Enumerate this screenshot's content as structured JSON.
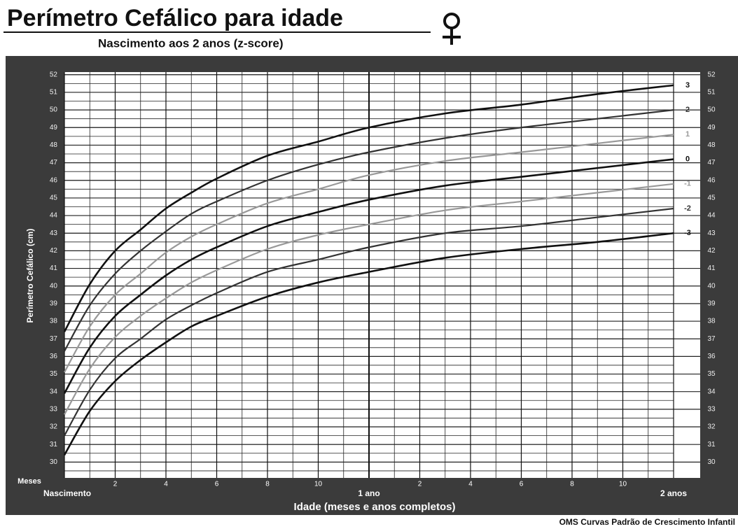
{
  "chart_data": {
    "type": "line",
    "title": "Perímetro Cefálico para idade",
    "subtitle": "Nascimento aos 2 anos (z-score)",
    "y_label": "Perímetro Cefálico (cm)",
    "x_label": "Idade (meses e anos completos)",
    "x_unit_label": "Meses",
    "footer": "OMS Curvas Padrão de Crescimento Infantil",
    "x": [
      0,
      1,
      2,
      3,
      4,
      5,
      6,
      8,
      10,
      12,
      15,
      18,
      21,
      24
    ],
    "series": [
      {
        "name": "3",
        "color": "#111111",
        "width": 2.6,
        "values": [
          37.4,
          40.1,
          42.0,
          43.2,
          44.4,
          45.3,
          46.1,
          47.4,
          48.2,
          49.0,
          49.8,
          50.3,
          50.9,
          51.4
        ]
      },
      {
        "name": "2",
        "color": "#333333",
        "width": 2.2,
        "values": [
          36.3,
          38.9,
          40.7,
          42.0,
          43.1,
          44.1,
          44.8,
          46.0,
          46.9,
          47.6,
          48.4,
          49.0,
          49.5,
          50.0
        ]
      },
      {
        "name": "1",
        "color": "#999999",
        "width": 2.2,
        "values": [
          35.1,
          37.7,
          39.5,
          40.7,
          41.9,
          42.8,
          43.5,
          44.7,
          45.5,
          46.3,
          47.1,
          47.6,
          48.1,
          48.6
        ]
      },
      {
        "name": "0",
        "color": "#111111",
        "width": 2.6,
        "values": [
          33.9,
          36.5,
          38.3,
          39.5,
          40.6,
          41.5,
          42.2,
          43.4,
          44.2,
          44.9,
          45.7,
          46.2,
          46.7,
          47.2
        ]
      },
      {
        "name": "-1",
        "color": "#999999",
        "width": 2.2,
        "values": [
          32.7,
          35.3,
          37.1,
          38.3,
          39.3,
          40.2,
          40.9,
          42.1,
          42.9,
          43.5,
          44.3,
          44.8,
          45.3,
          45.8
        ]
      },
      {
        "name": "-2",
        "color": "#333333",
        "width": 2.2,
        "values": [
          31.5,
          34.1,
          35.9,
          37.0,
          38.1,
          38.9,
          39.6,
          40.8,
          41.5,
          42.2,
          43.0,
          43.4,
          43.9,
          44.4
        ]
      },
      {
        "name": "-3",
        "color": "#111111",
        "width": 2.6,
        "values": [
          30.4,
          32.9,
          34.6,
          35.8,
          36.8,
          37.7,
          38.3,
          39.4,
          40.2,
          40.8,
          41.6,
          42.1,
          42.5,
          43.0
        ]
      }
    ],
    "xlim": [
      0,
      24
    ],
    "xticks": [
      {
        "value": 0,
        "label": "Nascimento"
      },
      2,
      4,
      6,
      8,
      10,
      {
        "value": 12,
        "label": "1 ano"
      },
      {
        "value": 14,
        "label": "2"
      },
      {
        "value": 16,
        "label": "4"
      },
      {
        "value": 18,
        "label": "6"
      },
      {
        "value": 20,
        "label": "8"
      },
      {
        "value": 22,
        "label": "10"
      },
      {
        "value": 24,
        "label": "2 anos"
      }
    ],
    "ylim": [
      29.1,
      52.15
    ],
    "yticks": [
      30,
      31,
      32,
      33,
      34,
      35,
      36,
      37,
      38,
      39,
      40,
      41,
      42,
      43,
      44,
      45,
      46,
      47,
      48,
      49,
      50,
      51,
      52
    ],
    "grid": true
  }
}
